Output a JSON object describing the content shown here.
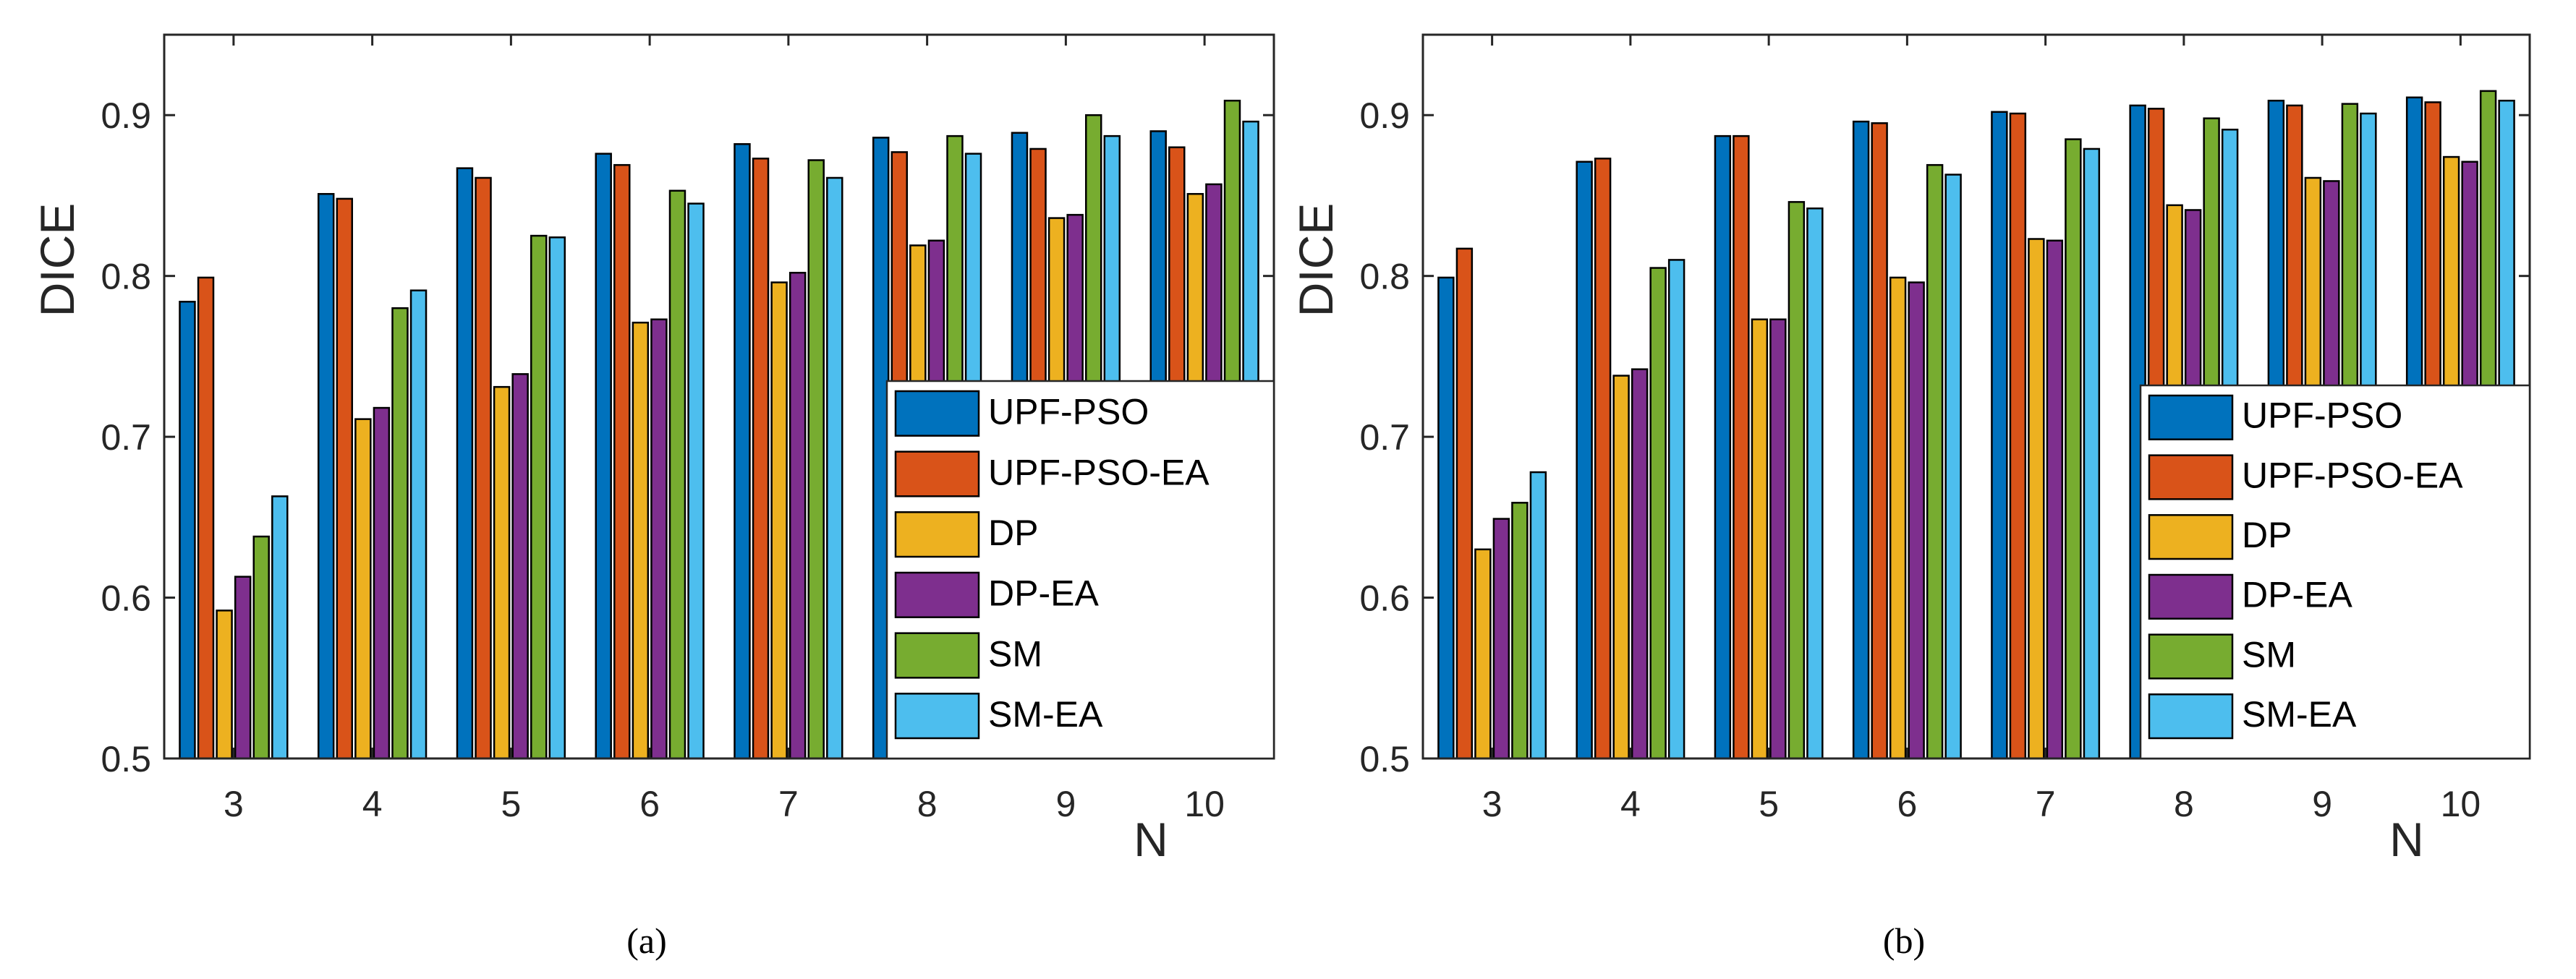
{
  "colors": [
    "#0072BD",
    "#D95319",
    "#EDB120",
    "#7E2F8E",
    "#77AC30",
    "#4DBEEE"
  ],
  "chart_data": [
    {
      "type": "bar",
      "caption": "(a)",
      "xlabel": "N",
      "ylabel": "DICE",
      "ylim": [
        0.5,
        0.95
      ],
      "yticks": [
        "0.5",
        "0.6",
        "0.7",
        "0.8",
        "0.9"
      ],
      "categories": [
        "3",
        "4",
        "5",
        "6",
        "7",
        "8",
        "9",
        "10"
      ],
      "legend_position": "bottom-right",
      "series": [
        {
          "name": "UPF-PSO",
          "values": [
            0.784,
            0.851,
            0.867,
            0.876,
            0.882,
            0.886,
            0.889,
            0.89
          ]
        },
        {
          "name": "UPF-PSO-EA",
          "values": [
            0.799,
            0.848,
            0.861,
            0.869,
            0.873,
            0.877,
            0.879,
            0.88
          ]
        },
        {
          "name": "DP",
          "values": [
            0.592,
            0.711,
            0.731,
            0.771,
            0.796,
            0.819,
            0.836,
            0.851
          ]
        },
        {
          "name": "DP-EA",
          "values": [
            0.613,
            0.718,
            0.739,
            0.773,
            0.802,
            0.822,
            0.838,
            0.857
          ]
        },
        {
          "name": "SM",
          "values": [
            0.638,
            0.78,
            0.825,
            0.853,
            0.872,
            0.887,
            0.9,
            0.909
          ]
        },
        {
          "name": "SM-EA",
          "values": [
            0.663,
            0.791,
            0.824,
            0.845,
            0.861,
            0.876,
            0.887,
            0.896
          ]
        }
      ]
    },
    {
      "type": "bar",
      "caption": "(b)",
      "xlabel": "N",
      "ylabel": "DICE",
      "ylim": [
        0.5,
        0.95
      ],
      "yticks": [
        "0.5",
        "0.6",
        "0.7",
        "0.8",
        "0.9"
      ],
      "categories": [
        "3",
        "4",
        "5",
        "6",
        "7",
        "8",
        "9",
        "10"
      ],
      "legend_position": "bottom-right",
      "series": [
        {
          "name": "UPF-PSO",
          "values": [
            0.799,
            0.871,
            0.887,
            0.896,
            0.902,
            0.906,
            0.909,
            0.911
          ]
        },
        {
          "name": "UPF-PSO-EA",
          "values": [
            0.817,
            0.873,
            0.887,
            0.895,
            0.901,
            0.904,
            0.906,
            0.908
          ]
        },
        {
          "name": "DP",
          "values": [
            0.63,
            0.738,
            0.773,
            0.799,
            0.823,
            0.844,
            0.861,
            0.874
          ]
        },
        {
          "name": "DP-EA",
          "values": [
            0.649,
            0.742,
            0.773,
            0.796,
            0.822,
            0.841,
            0.859,
            0.871
          ]
        },
        {
          "name": "SM",
          "values": [
            0.659,
            0.805,
            0.846,
            0.869,
            0.885,
            0.898,
            0.907,
            0.915
          ]
        },
        {
          "name": "SM-EA",
          "values": [
            0.678,
            0.81,
            0.842,
            0.863,
            0.879,
            0.891,
            0.901,
            0.909
          ]
        }
      ]
    }
  ]
}
